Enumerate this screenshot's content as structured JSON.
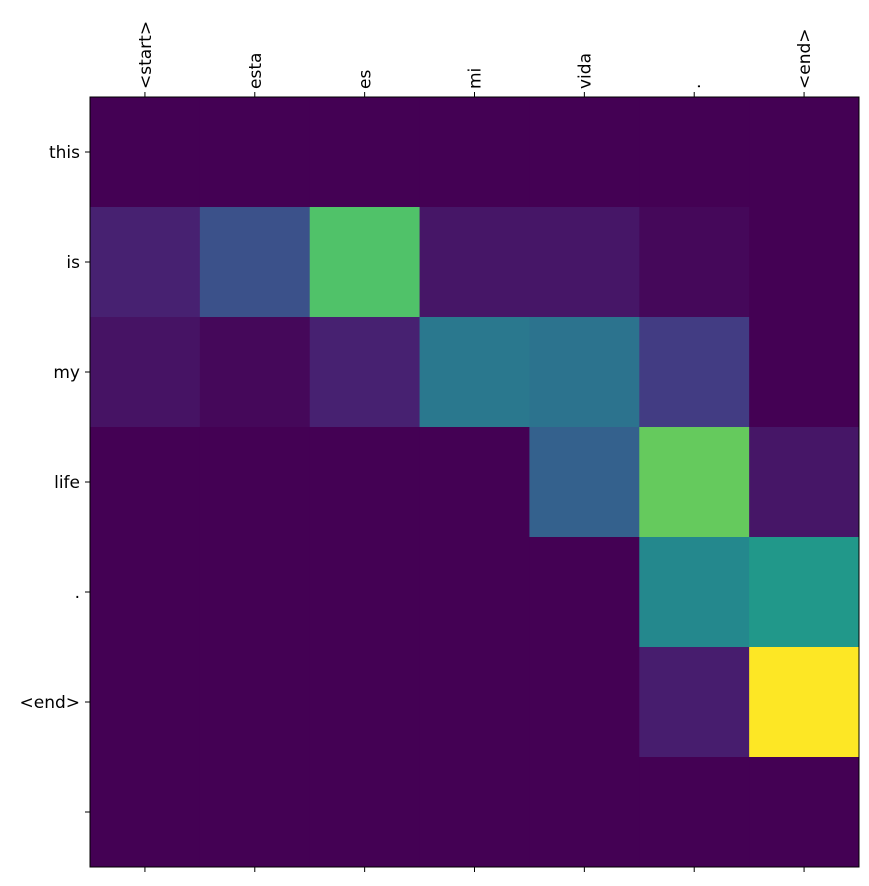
{
  "chart_data": {
    "type": "heatmap",
    "colormap": "viridis",
    "x_tick_labels": [
      "<start>",
      "esta",
      "es",
      "mi",
      "vida",
      ".",
      "<end>"
    ],
    "y_tick_labels": [
      "this",
      "is",
      "my",
      "life",
      ".",
      "<end>",
      ""
    ],
    "values": [
      [
        0.0,
        0.0,
        0.0,
        0.0,
        0.0,
        0.0,
        0.0
      ],
      [
        0.09,
        0.25,
        0.72,
        0.06,
        0.06,
        0.02,
        0.0
      ],
      [
        0.05,
        0.02,
        0.09,
        0.4,
        0.38,
        0.18,
        0.0
      ],
      [
        0.0,
        0.0,
        0.0,
        0.0,
        0.31,
        0.76,
        0.06
      ],
      [
        0.0,
        0.0,
        0.0,
        0.0,
        0.0,
        0.47,
        0.53
      ],
      [
        0.0,
        0.0,
        0.0,
        0.0,
        0.0,
        0.08,
        1.0
      ],
      [
        0.0,
        0.0,
        0.0,
        0.0,
        0.0,
        0.0,
        0.0
      ]
    ],
    "value_range": [
      0,
      1
    ],
    "grid": false
  }
}
